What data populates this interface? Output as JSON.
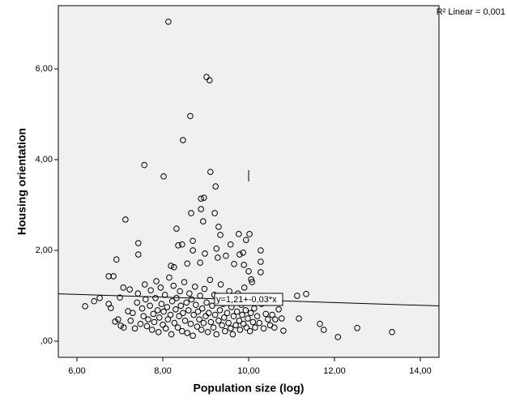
{
  "chart_data": {
    "type": "scatter",
    "x_label": "Population size (log)",
    "y_label": "Housing orientation",
    "r2_label": "R² Linear = 0,001",
    "fit_label": "y=1,21+-0,03*x",
    "fit": {
      "intercept": 1.21,
      "slope": -0.03
    },
    "xlim": [
      5.566,
      14.434
    ],
    "ylim": [
      -0.357,
      7.393
    ],
    "xticks": [
      {
        "value": 6,
        "label": "6,00"
      },
      {
        "value": 8,
        "label": "8,00"
      },
      {
        "value": 10,
        "label": "10,00"
      },
      {
        "value": 12,
        "label": "12,00"
      },
      {
        "value": 14,
        "label": "14,00"
      }
    ],
    "yticks": [
      {
        "value": 0,
        "label": ",00"
      },
      {
        "value": 2,
        "label": "2,00"
      },
      {
        "value": 4,
        "label": "4,00"
      },
      {
        "value": 6,
        "label": "6,00"
      }
    ],
    "color": "#000000",
    "x": [
      8.13,
      9.02,
      9.09,
      8.64,
      8.47,
      7.57,
      8.02,
      9.11,
      9.23,
      8.96,
      8.89,
      8.89,
      8.66,
      9.21,
      8.94,
      7.13,
      9.3,
      8.32,
      9.34,
      9.77,
      10.02,
      9.94,
      8.7,
      7.43,
      9.58,
      8.36,
      8.45,
      9.25,
      8.7,
      10.28,
      8.98,
      7.43,
      9.79,
      9.87,
      6.92,
      9.47,
      9.28,
      10.28,
      8.87,
      8.57,
      9.66,
      8.19,
      8.26,
      9.89,
      10.0,
      10.28,
      10.06,
      6.74,
      6.85,
      6.19,
      6.4,
      6.53,
      6.79,
      6.74,
      6.89,
      6.96,
      7.0,
      7.08,
      7.23,
      7.02,
      7.09,
      7.19,
      12.53,
      13.34,
      12.08,
      11.66,
      11.75,
      11.34,
      11.13,
      11.17,
      10.81,
      10.7,
      10.62,
      10.77,
      7.25,
      7.3,
      7.35,
      7.4,
      7.42,
      7.48,
      7.52,
      7.55,
      7.58,
      7.6,
      7.63,
      7.66,
      7.7,
      7.72,
      7.75,
      7.78,
      7.8,
      7.83,
      7.85,
      7.88,
      7.9,
      7.92,
      7.95,
      7.97,
      8.0,
      8.02,
      8.05,
      8.07,
      8.1,
      8.12,
      8.15,
      8.18,
      8.2,
      8.22,
      8.25,
      8.27,
      8.3,
      8.32,
      8.35,
      8.38,
      8.4,
      8.42,
      8.45,
      8.47,
      8.5,
      8.52,
      8.55,
      8.57,
      8.6,
      8.62,
      8.65,
      8.67,
      8.7,
      8.72,
      8.75,
      8.77,
      8.8,
      8.82,
      8.85,
      8.87,
      8.9,
      8.92,
      8.95,
      8.97,
      9.0,
      9.02,
      9.05,
      9.07,
      9.1,
      9.12,
      9.15,
      9.18,
      9.2,
      9.22,
      9.25,
      9.28,
      9.3,
      9.33,
      9.35,
      9.38,
      9.4,
      9.43,
      9.45,
      9.48,
      9.5,
      9.53,
      9.55,
      9.58,
      9.6,
      9.63,
      9.65,
      9.68,
      9.7,
      9.73,
      9.75,
      9.78,
      9.8,
      9.83,
      9.85,
      9.88,
      9.9,
      9.93,
      9.95,
      9.98,
      10.0,
      10.03,
      10.05,
      10.08,
      10.1,
      10.13,
      10.15,
      10.2,
      10.25,
      10.3,
      10.35,
      10.4,
      10.45,
      10.5,
      10.55,
      10.6
    ],
    "values": [
      7.04,
      5.82,
      5.75,
      4.96,
      4.43,
      3.88,
      3.63,
      3.73,
      3.41,
      3.16,
      3.14,
      2.91,
      2.82,
      2.82,
      2.64,
      2.68,
      2.52,
      2.48,
      2.34,
      2.36,
      2.36,
      2.23,
      2.21,
      2.16,
      2.13,
      2.11,
      2.13,
      2.04,
      2.0,
      2.0,
      1.93,
      1.91,
      1.91,
      1.95,
      1.8,
      1.88,
      1.84,
      1.75,
      1.73,
      1.71,
      1.7,
      1.66,
      1.63,
      1.68,
      1.54,
      1.52,
      1.36,
      1.43,
      1.43,
      0.77,
      0.88,
      0.95,
      0.73,
      0.82,
      0.43,
      0.48,
      0.96,
      1.18,
      1.14,
      0.34,
      0.3,
      0.66,
      0.29,
      0.2,
      0.09,
      0.38,
      0.25,
      1.04,
      1.0,
      0.5,
      0.23,
      0.7,
      0.48,
      0.5,
      0.45,
      0.62,
      0.28,
      0.85,
      1.05,
      0.38,
      0.72,
      0.55,
      1.25,
      0.92,
      0.33,
      0.48,
      0.78,
      1.12,
      0.25,
      0.6,
      0.42,
      0.95,
      1.32,
      0.68,
      0.2,
      0.52,
      1.18,
      0.82,
      0.36,
      0.65,
      1.02,
      0.28,
      0.75,
      0.48,
      1.4,
      0.58,
      0.15,
      0.88,
      1.22,
      0.4,
      0.7,
      0.95,
      0.3,
      0.55,
      1.1,
      0.78,
      0.22,
      0.62,
      1.3,
      0.45,
      0.85,
      0.18,
      0.68,
      1.05,
      0.38,
      0.92,
      0.12,
      0.58,
      1.2,
      0.8,
      0.32,
      0.65,
      0.48,
      1.0,
      0.25,
      0.72,
      0.4,
      1.15,
      0.55,
      0.85,
      0.2,
      0.62,
      1.35,
      0.42,
      0.78,
      0.3,
      1.02,
      0.58,
      0.15,
      0.88,
      0.45,
      0.68,
      1.25,
      0.35,
      0.82,
      0.52,
      0.22,
      0.95,
      0.62,
      0.4,
      1.1,
      0.28,
      0.75,
      0.15,
      0.55,
      0.9,
      0.35,
      0.65,
      1.05,
      0.45,
      0.25,
      0.8,
      0.58,
      0.38,
      1.18,
      0.68,
      0.3,
      0.5,
      0.88,
      0.22,
      0.62,
      1.3,
      0.42,
      0.72,
      0.3,
      0.55,
      0.4,
      0.82,
      0.28,
      0.6,
      0.48,
      0.35,
      0.58,
      0.3
    ]
  }
}
